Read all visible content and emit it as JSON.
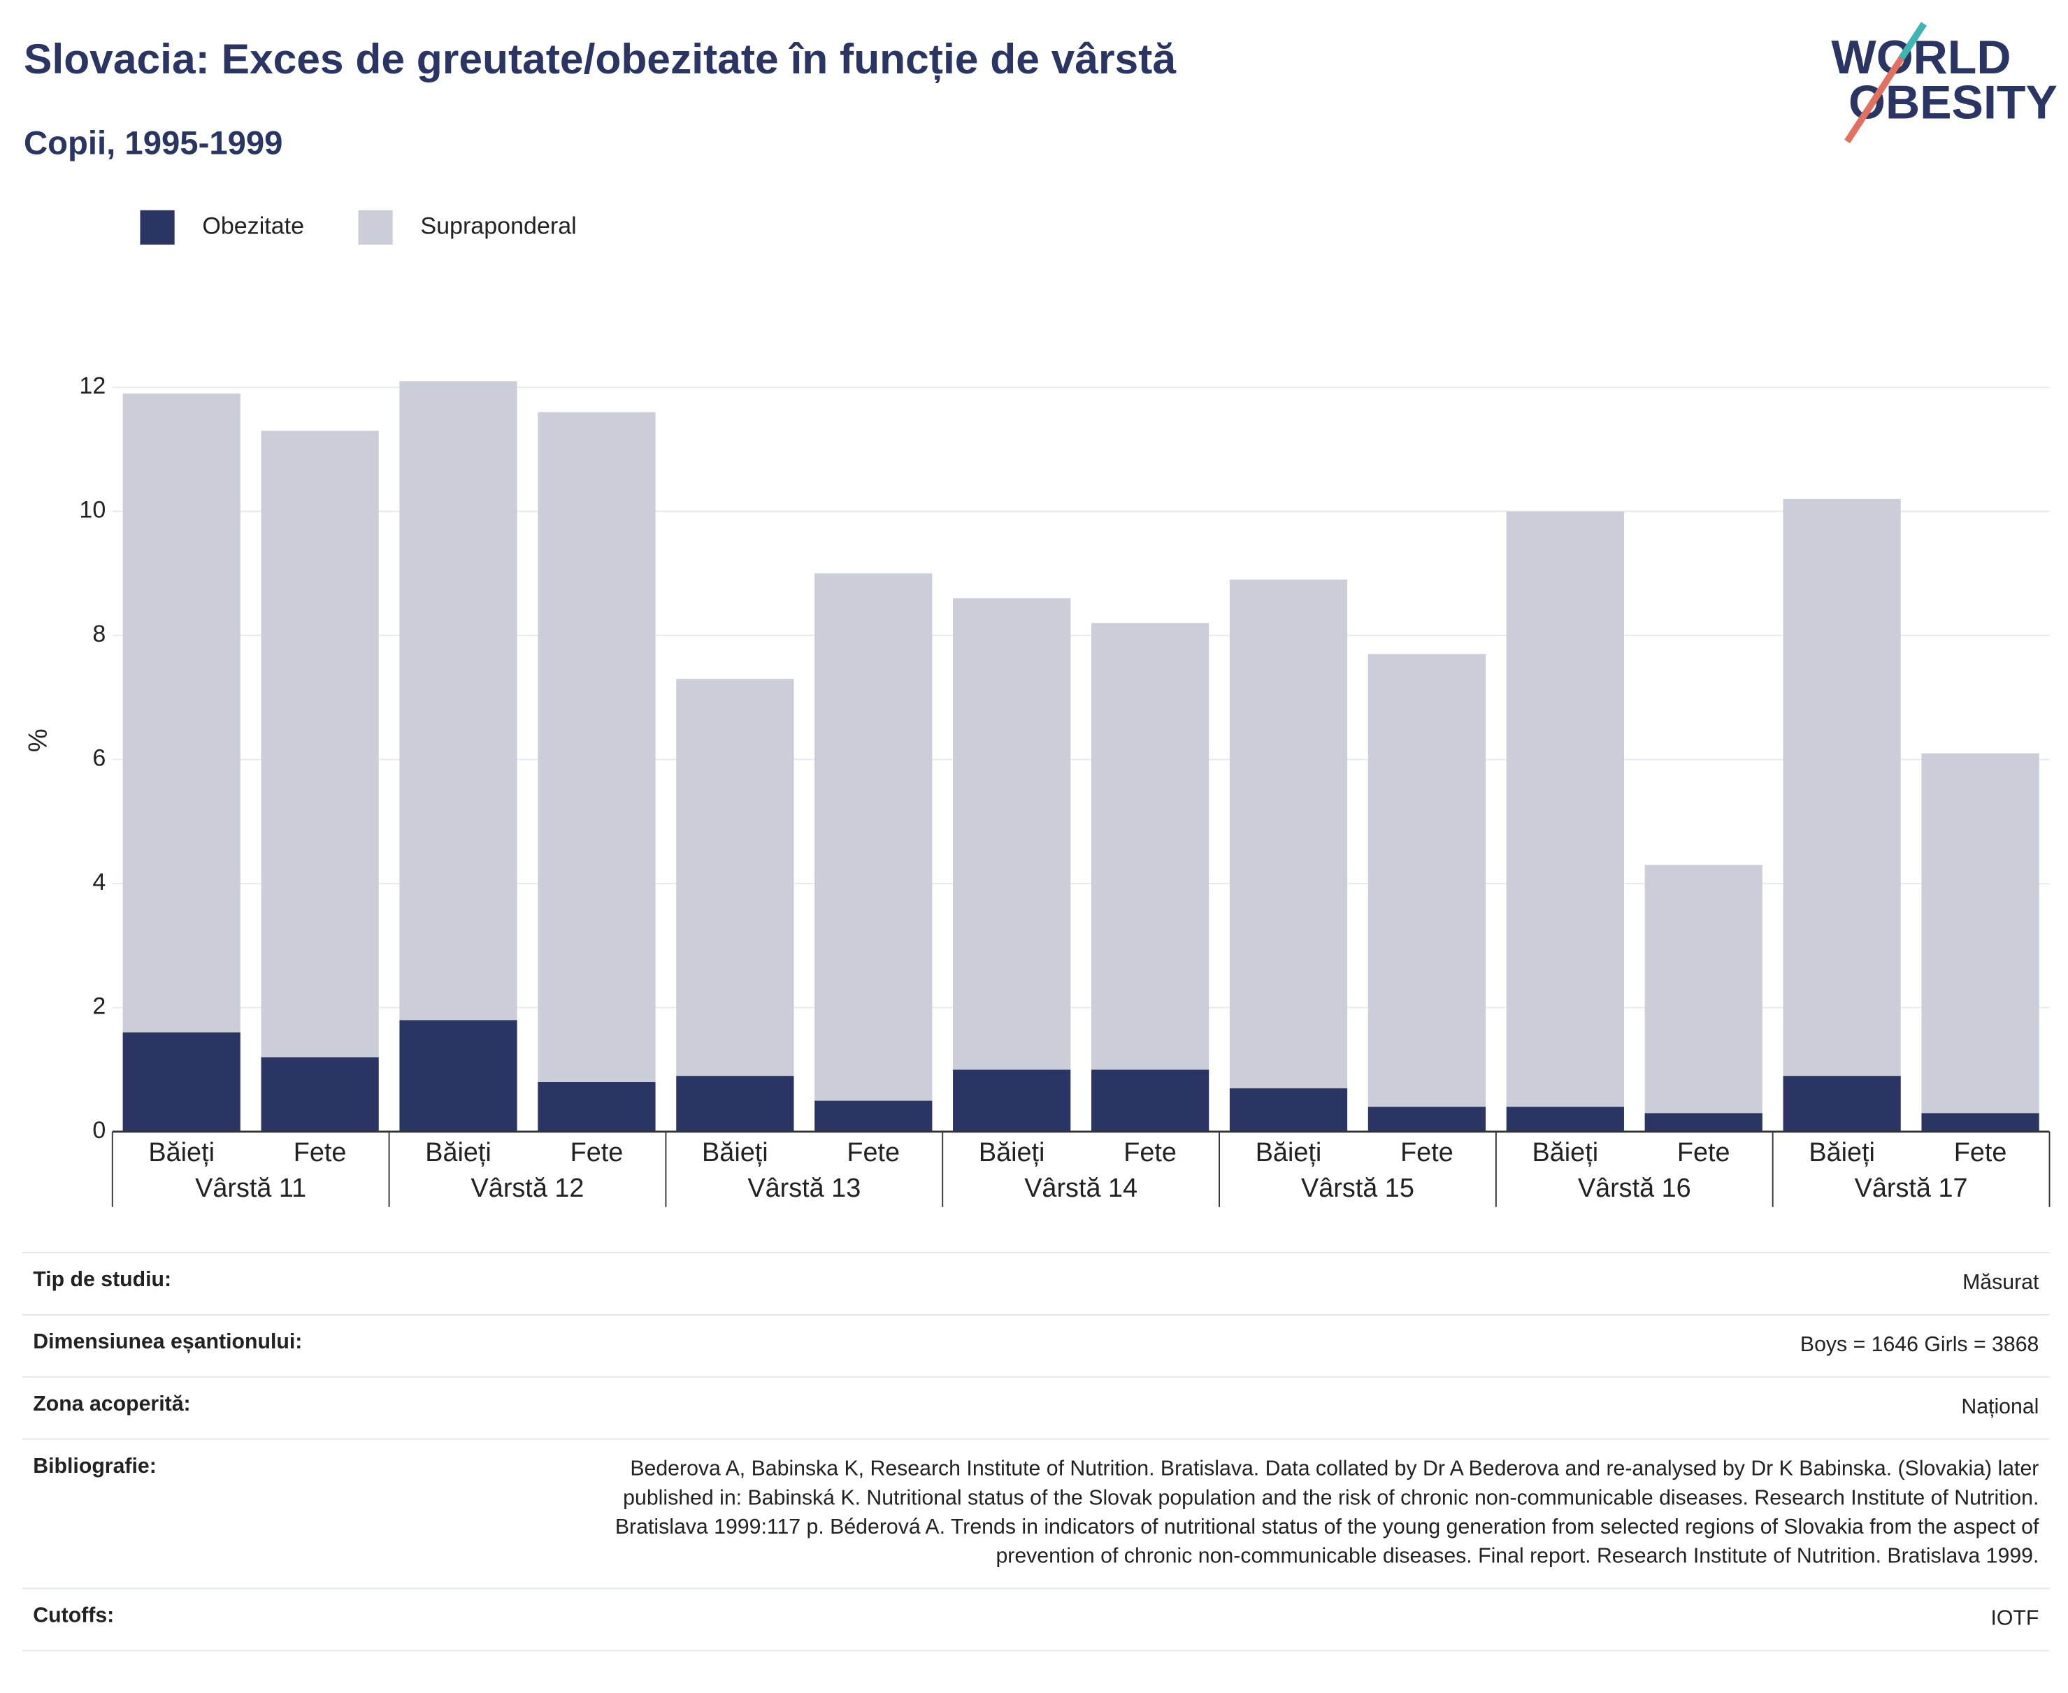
{
  "header": {
    "title": "Slovacia: Exces de greutate/obezitate în funcție de vârstă",
    "subtitle": "Copii, 1995-1999"
  },
  "logo": [
    "WORLD",
    "OBESITY"
  ],
  "chart_data": {
    "type": "bar",
    "stacked": true,
    "ylabel": "%",
    "categories": [
      "Băieți",
      "Fete",
      "Băieți",
      "Fete",
      "Băieți",
      "Fete",
      "Băieți",
      "Fete",
      "Băieți",
      "Fete",
      "Băieți",
      "Fete",
      "Băieți",
      "Fete"
    ],
    "groups": [
      "Vârstă 11",
      "Vârstă 12",
      "Vârstă 13",
      "Vârstă 14",
      "Vârstă 15",
      "Vârstă 16",
      "Vârstă 17"
    ],
    "series": [
      {
        "name": "Obezitate",
        "color": "#2a3563",
        "values": [
          1.6,
          1.2,
          1.8,
          0.8,
          0.9,
          0.5,
          1.0,
          1.0,
          0.7,
          0.4,
          0.4,
          0.3,
          0.9,
          0.3
        ]
      },
      {
        "name": "Supraponderal",
        "color": "#cbcdd8",
        "values": [
          10.3,
          10.1,
          10.3,
          10.8,
          6.4,
          8.5,
          7.6,
          7.2,
          8.2,
          7.3,
          9.6,
          4.0,
          9.3,
          5.8
        ]
      }
    ],
    "ylim": [
      0,
      12
    ],
    "yticks": [
      0,
      2,
      4,
      6,
      8,
      10,
      12
    ],
    "grid": true,
    "legend": "top-left"
  },
  "table": {
    "rows": [
      [
        "Tip de studiu:",
        "Măsurat"
      ],
      [
        "Dimensiunea eșantionului:",
        "Boys = 1646 Girls = 3868"
      ],
      [
        "Zona acoperită:",
        "Național"
      ],
      [
        "Bibliografie:",
        "Bederova A, Babinska K, Research Institute of Nutrition. Bratislava. Data collated by Dr A Bederova and re-analysed by Dr K Babinska. (Slovakia) later published in: Babinská K. Nutritional status of the Slovak population and the risk of chronic non-communicable diseases. Research Institute of Nutrition. Bratislava 1999:117 p. Béderová A. Trends in indicators of nutritional status of the young generation from selected regions of Slovakia from the aspect of prevention of chronic non-communicable diseases. Final report. Research Institute of Nutrition. Bratislava 1999."
      ],
      [
        "Cutoffs:",
        "IOTF"
      ]
    ]
  }
}
